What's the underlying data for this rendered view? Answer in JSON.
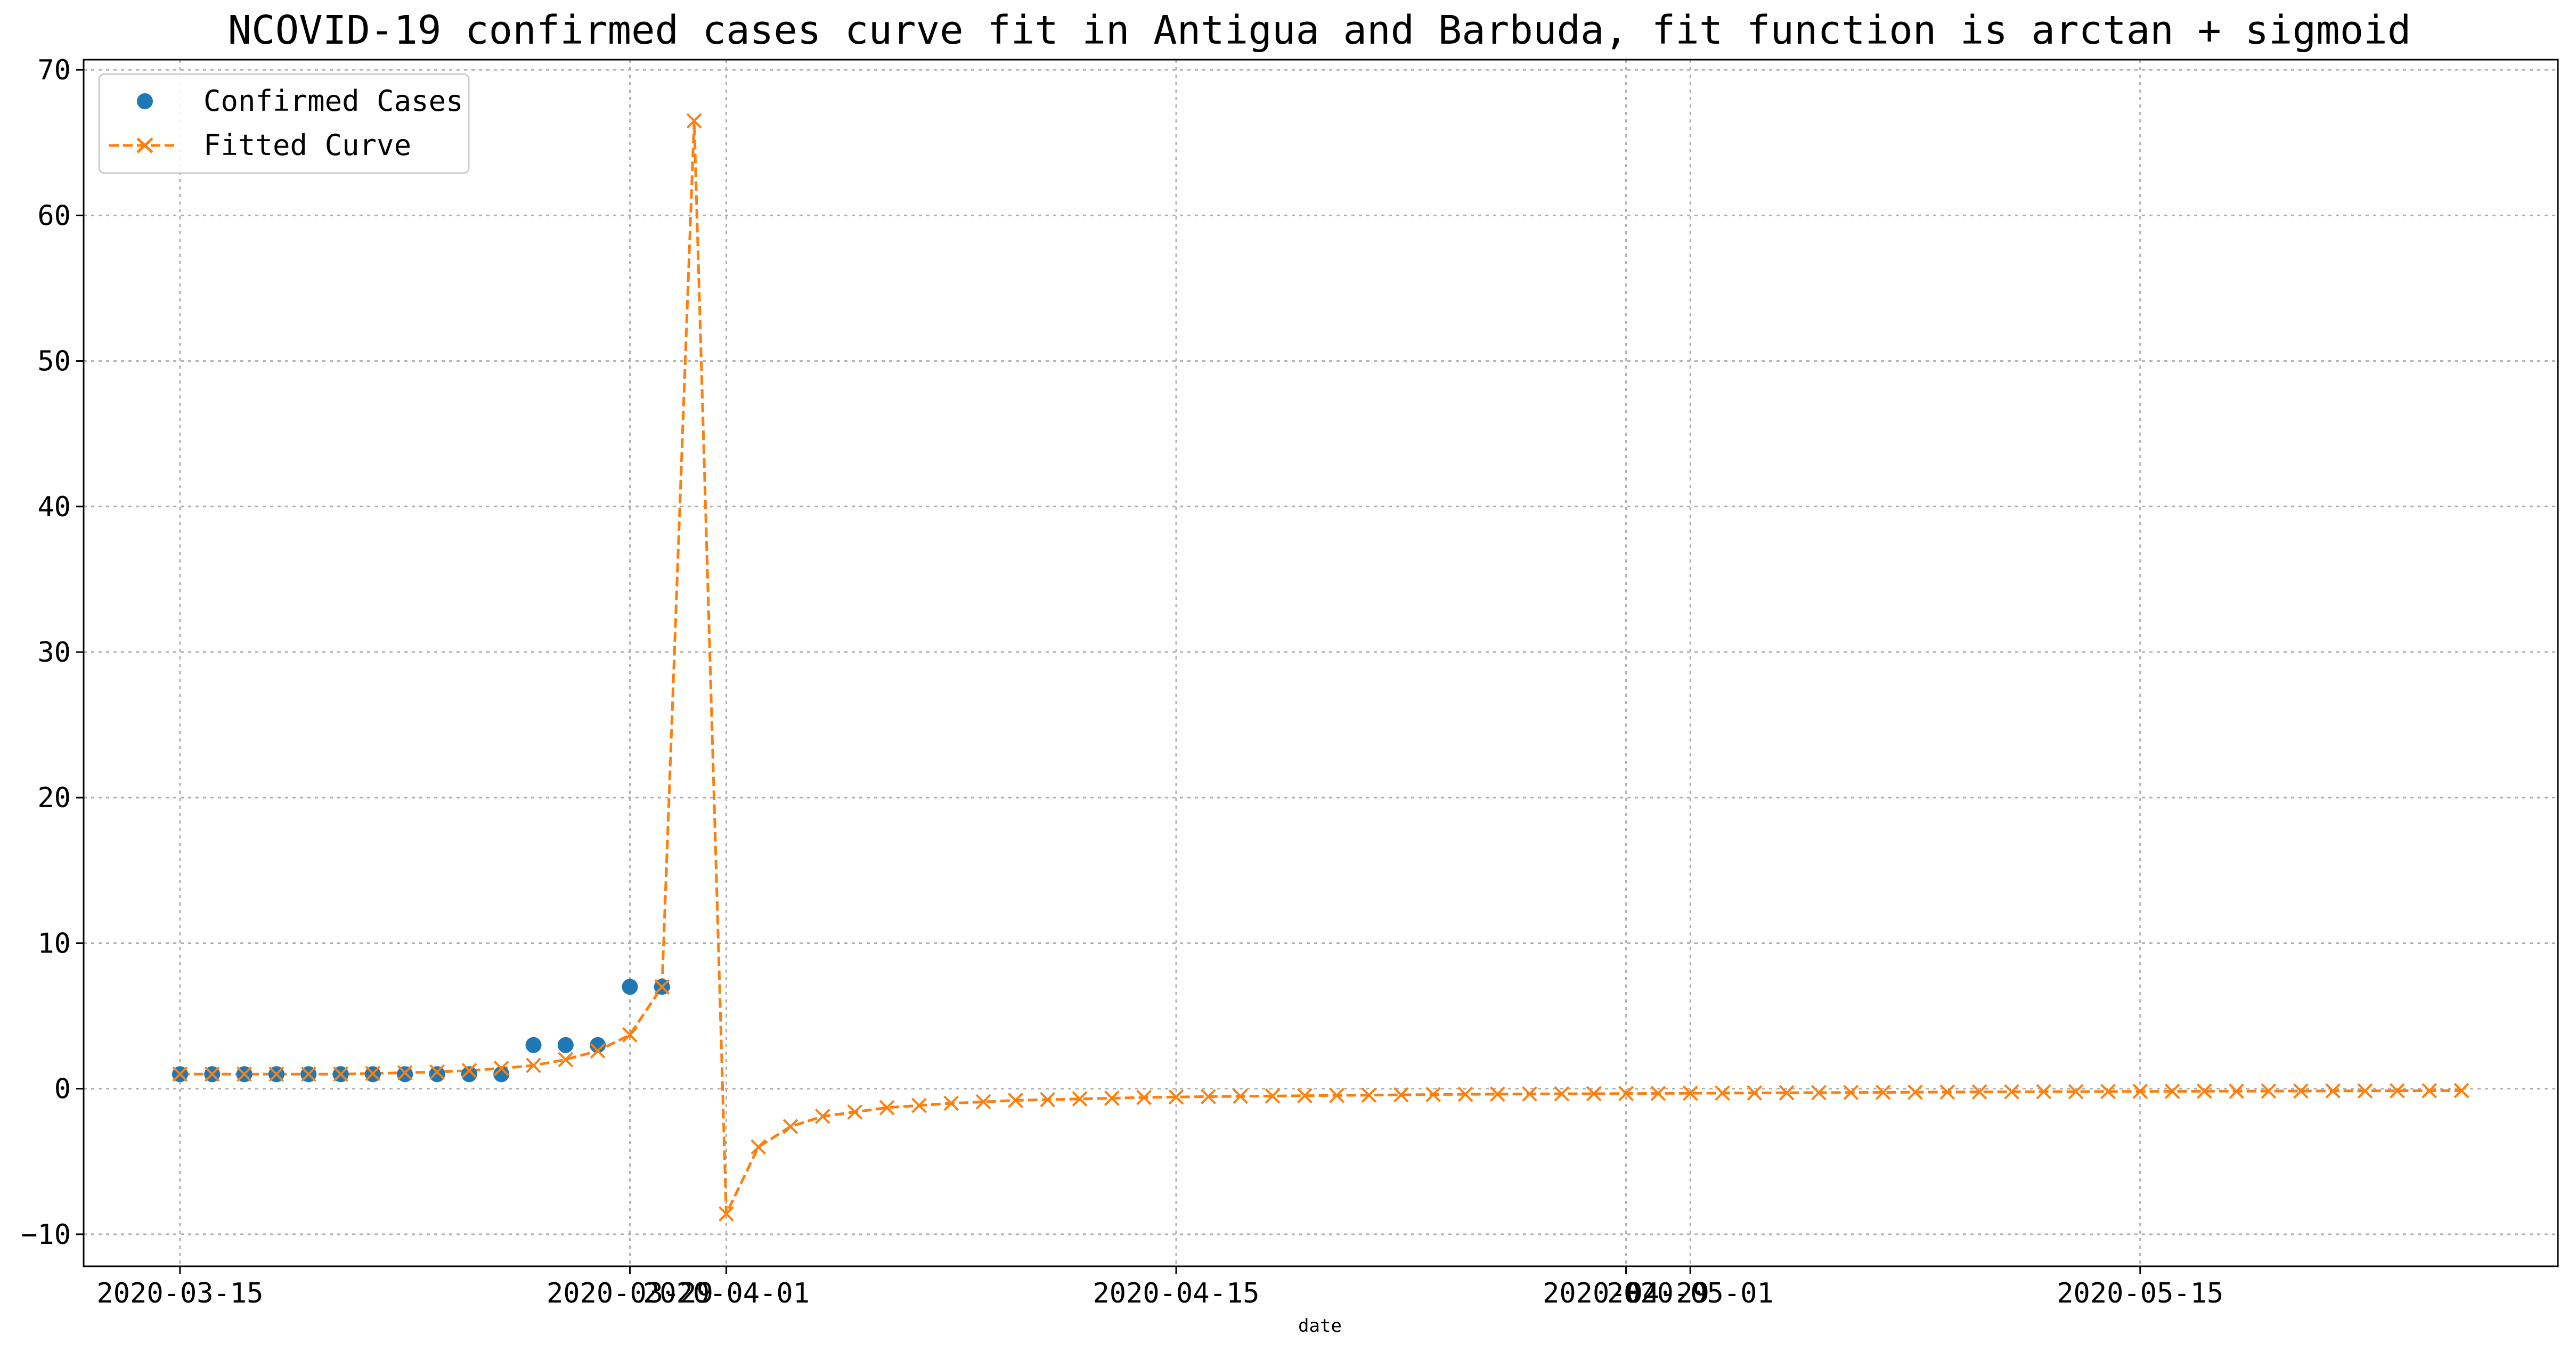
{
  "chart_data": {
    "type": "line",
    "title": "NCOVID-19 confirmed cases curve fit in Antigua and Barbuda, fit function is arctan + sigmoid",
    "xlabel": "date",
    "ylabel": "",
    "x_axis_type": "date",
    "xlim": [
      "2020-03-12",
      "2020-05-28"
    ],
    "ylim": [
      -12.2,
      70.7
    ],
    "x_ticks": [
      "2020-03-15",
      "2020-03-29",
      "2020-04-01",
      "2020-04-15",
      "2020-04-29",
      "2020-05-01",
      "2020-05-15"
    ],
    "y_ticks": [
      -10,
      0,
      10,
      20,
      30,
      40,
      50,
      60,
      70
    ],
    "grid": true,
    "legend_position": "top-left",
    "colors": {
      "confirmed": "#1f77b4",
      "fitted": "#ff7f0e"
    },
    "series": [
      {
        "name": "Confirmed Cases",
        "style": "points",
        "x": [
          "2020-03-15",
          "2020-03-16",
          "2020-03-17",
          "2020-03-18",
          "2020-03-19",
          "2020-03-20",
          "2020-03-21",
          "2020-03-22",
          "2020-03-23",
          "2020-03-24",
          "2020-03-25",
          "2020-03-26",
          "2020-03-27",
          "2020-03-28",
          "2020-03-29",
          "2020-03-30"
        ],
        "values": [
          1,
          1,
          1,
          1,
          1,
          1,
          1,
          1,
          1,
          1,
          1,
          3,
          3,
          3,
          7,
          7
        ]
      },
      {
        "name": "Fitted Curve",
        "style": "dashed-line-x-markers",
        "x": [
          "2020-03-15",
          "2020-03-16",
          "2020-03-17",
          "2020-03-18",
          "2020-03-19",
          "2020-03-20",
          "2020-03-21",
          "2020-03-22",
          "2020-03-23",
          "2020-03-24",
          "2020-03-25",
          "2020-03-26",
          "2020-03-27",
          "2020-03-28",
          "2020-03-29",
          "2020-03-30",
          "2020-03-31",
          "2020-04-01",
          "2020-04-02",
          "2020-04-03",
          "2020-04-04",
          "2020-04-05",
          "2020-04-06",
          "2020-04-07",
          "2020-04-08",
          "2020-04-09",
          "2020-04-10",
          "2020-04-11",
          "2020-04-12",
          "2020-04-13",
          "2020-04-14",
          "2020-04-15",
          "2020-04-16",
          "2020-04-17",
          "2020-04-18",
          "2020-04-19",
          "2020-04-20",
          "2020-04-21",
          "2020-04-22",
          "2020-04-23",
          "2020-04-24",
          "2020-04-25",
          "2020-04-26",
          "2020-04-27",
          "2020-04-28",
          "2020-04-29",
          "2020-04-30",
          "2020-05-01",
          "2020-05-02",
          "2020-05-03",
          "2020-05-04",
          "2020-05-05",
          "2020-05-06",
          "2020-05-07",
          "2020-05-08",
          "2020-05-09",
          "2020-05-10",
          "2020-05-11",
          "2020-05-12",
          "2020-05-13",
          "2020-05-14",
          "2020-05-15",
          "2020-05-16",
          "2020-05-17",
          "2020-05-18",
          "2020-05-19",
          "2020-05-20",
          "2020-05-21",
          "2020-05-22",
          "2020-05-23",
          "2020-05-24",
          "2020-05-25"
        ],
        "values": [
          1.0,
          1.0,
          1.0,
          1.0,
          1.0,
          1.0,
          1.05,
          1.1,
          1.15,
          1.25,
          1.4,
          1.6,
          2.0,
          2.6,
          3.7,
          7.0,
          66.5,
          -8.6,
          -4.0,
          -2.6,
          -1.9,
          -1.6,
          -1.3,
          -1.15,
          -1.0,
          -0.9,
          -0.8,
          -0.75,
          -0.7,
          -0.65,
          -0.6,
          -0.57,
          -0.54,
          -0.52,
          -0.5,
          -0.48,
          -0.46,
          -0.44,
          -0.42,
          -0.4,
          -0.38,
          -0.37,
          -0.36,
          -0.35,
          -0.34,
          -0.33,
          -0.32,
          -0.31,
          -0.3,
          -0.29,
          -0.28,
          -0.27,
          -0.26,
          -0.25,
          -0.24,
          -0.23,
          -0.22,
          -0.21,
          -0.2,
          -0.2,
          -0.19,
          -0.18,
          -0.18,
          -0.17,
          -0.17,
          -0.16,
          -0.16,
          -0.15,
          -0.15,
          -0.14,
          -0.14,
          -0.13
        ]
      }
    ]
  }
}
